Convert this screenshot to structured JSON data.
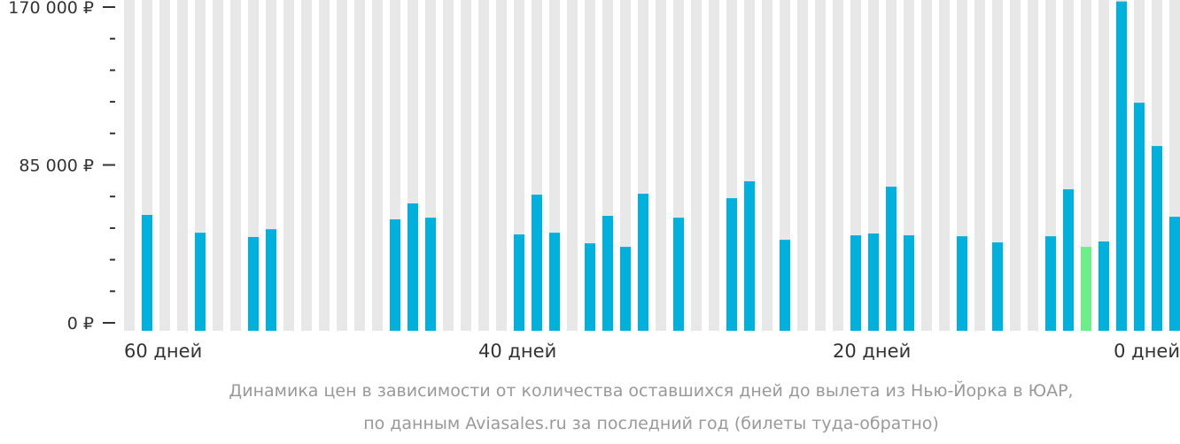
{
  "chart_data": {
    "type": "bar",
    "title": "",
    "xlabel": "",
    "ylabel": "",
    "ylim": [
      0,
      170000
    ],
    "y_ticks": [
      {
        "value": 0,
        "label": "0 ₽"
      },
      {
        "value": 85000,
        "label": "85 000 ₽"
      },
      {
        "value": 170000,
        "label": "170 000 ₽"
      }
    ],
    "y_minor_step": 17000,
    "x_ticks": [
      {
        "days": 60,
        "label": "60 дней"
      },
      {
        "days": 40,
        "label": "40 дней"
      },
      {
        "days": 20,
        "label": "20 дней"
      },
      {
        "days": 0,
        "label": "0 дней"
      }
    ],
    "days": [
      60,
      59,
      58,
      57,
      56,
      55,
      54,
      53,
      52,
      51,
      50,
      49,
      48,
      47,
      46,
      45,
      44,
      43,
      42,
      41,
      40,
      39,
      38,
      37,
      36,
      35,
      34,
      33,
      32,
      31,
      30,
      29,
      28,
      27,
      26,
      25,
      24,
      23,
      22,
      21,
      20,
      19,
      18,
      17,
      16,
      15,
      14,
      13,
      12,
      11,
      10,
      9,
      8,
      7,
      6,
      5,
      4,
      3,
      2,
      1
    ],
    "values": [
      null,
      58100,
      null,
      null,
      48500,
      null,
      null,
      46200,
      50400,
      null,
      null,
      null,
      null,
      null,
      null,
      55700,
      64300,
      56600,
      null,
      null,
      null,
      null,
      47600,
      69000,
      48500,
      null,
      42800,
      57600,
      40900,
      69500,
      null,
      56600,
      null,
      null,
      67100,
      76200,
      null,
      44700,
      null,
      null,
      null,
      47100,
      48100,
      73300,
      47100,
      null,
      null,
      46600,
      null,
      43300,
      null,
      null,
      46600,
      71900,
      40900,
      43800,
      173000,
      118500,
      95200,
      57100
    ],
    "cheapest_index": 54,
    "colors": {
      "bar": "#00b1dd",
      "cheapest": "#6cee88",
      "background_column": "#e8e8e8",
      "tick": "#333333"
    }
  },
  "caption": {
    "line1": "Динамика цен в зависимости от количества оставшихся дней до вылета из Нью-Йорка в ЮАР,",
    "line2": "по данным Aviasales.ru за последний год (билеты туда-обратно)"
  }
}
